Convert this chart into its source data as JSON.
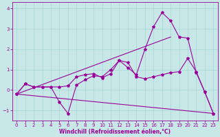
{
  "xlabel": "Windchill (Refroidissement éolien,°C)",
  "bg_color": "#c8e8e8",
  "line_color": "#990099",
  "xlim": [
    -0.5,
    23.5
  ],
  "ylim": [
    -1.5,
    4.3
  ],
  "yticks": [
    -1,
    0,
    1,
    2,
    3,
    4
  ],
  "xticks": [
    0,
    1,
    2,
    3,
    4,
    5,
    6,
    7,
    8,
    9,
    10,
    11,
    12,
    13,
    14,
    15,
    16,
    17,
    18,
    19,
    20,
    21,
    22,
    23
  ],
  "line1_x": [
    0,
    1,
    2,
    3,
    4,
    5,
    6,
    7,
    8,
    9,
    10,
    11,
    12,
    13,
    14,
    15,
    16,
    17,
    18,
    19,
    20,
    21,
    22,
    23
  ],
  "line1_y": [
    -0.2,
    0.3,
    0.15,
    0.15,
    0.15,
    -0.6,
    -1.15,
    0.25,
    0.5,
    0.7,
    0.65,
    1.0,
    1.45,
    1.1,
    0.75,
    2.0,
    3.1,
    3.8,
    3.4,
    2.6,
    2.55,
    0.85,
    -0.1,
    -1.15
  ],
  "line2_x": [
    0,
    1,
    2,
    3,
    4,
    5,
    6,
    7,
    8,
    9,
    10,
    11,
    12,
    13,
    14,
    15,
    16,
    17,
    18,
    19,
    20,
    21,
    22,
    23
  ],
  "line2_y": [
    -0.2,
    0.3,
    0.15,
    0.15,
    0.15,
    0.15,
    0.2,
    0.65,
    0.75,
    0.8,
    0.6,
    0.8,
    1.45,
    1.35,
    0.65,
    0.55,
    0.65,
    0.75,
    0.85,
    0.9,
    1.55,
    0.9,
    -0.1,
    -1.15
  ],
  "line3_x": [
    0,
    18
  ],
  "line3_y": [
    -0.2,
    2.6
  ],
  "line4_x": [
    0,
    23
  ],
  "line4_y": [
    -0.2,
    -1.15
  ]
}
